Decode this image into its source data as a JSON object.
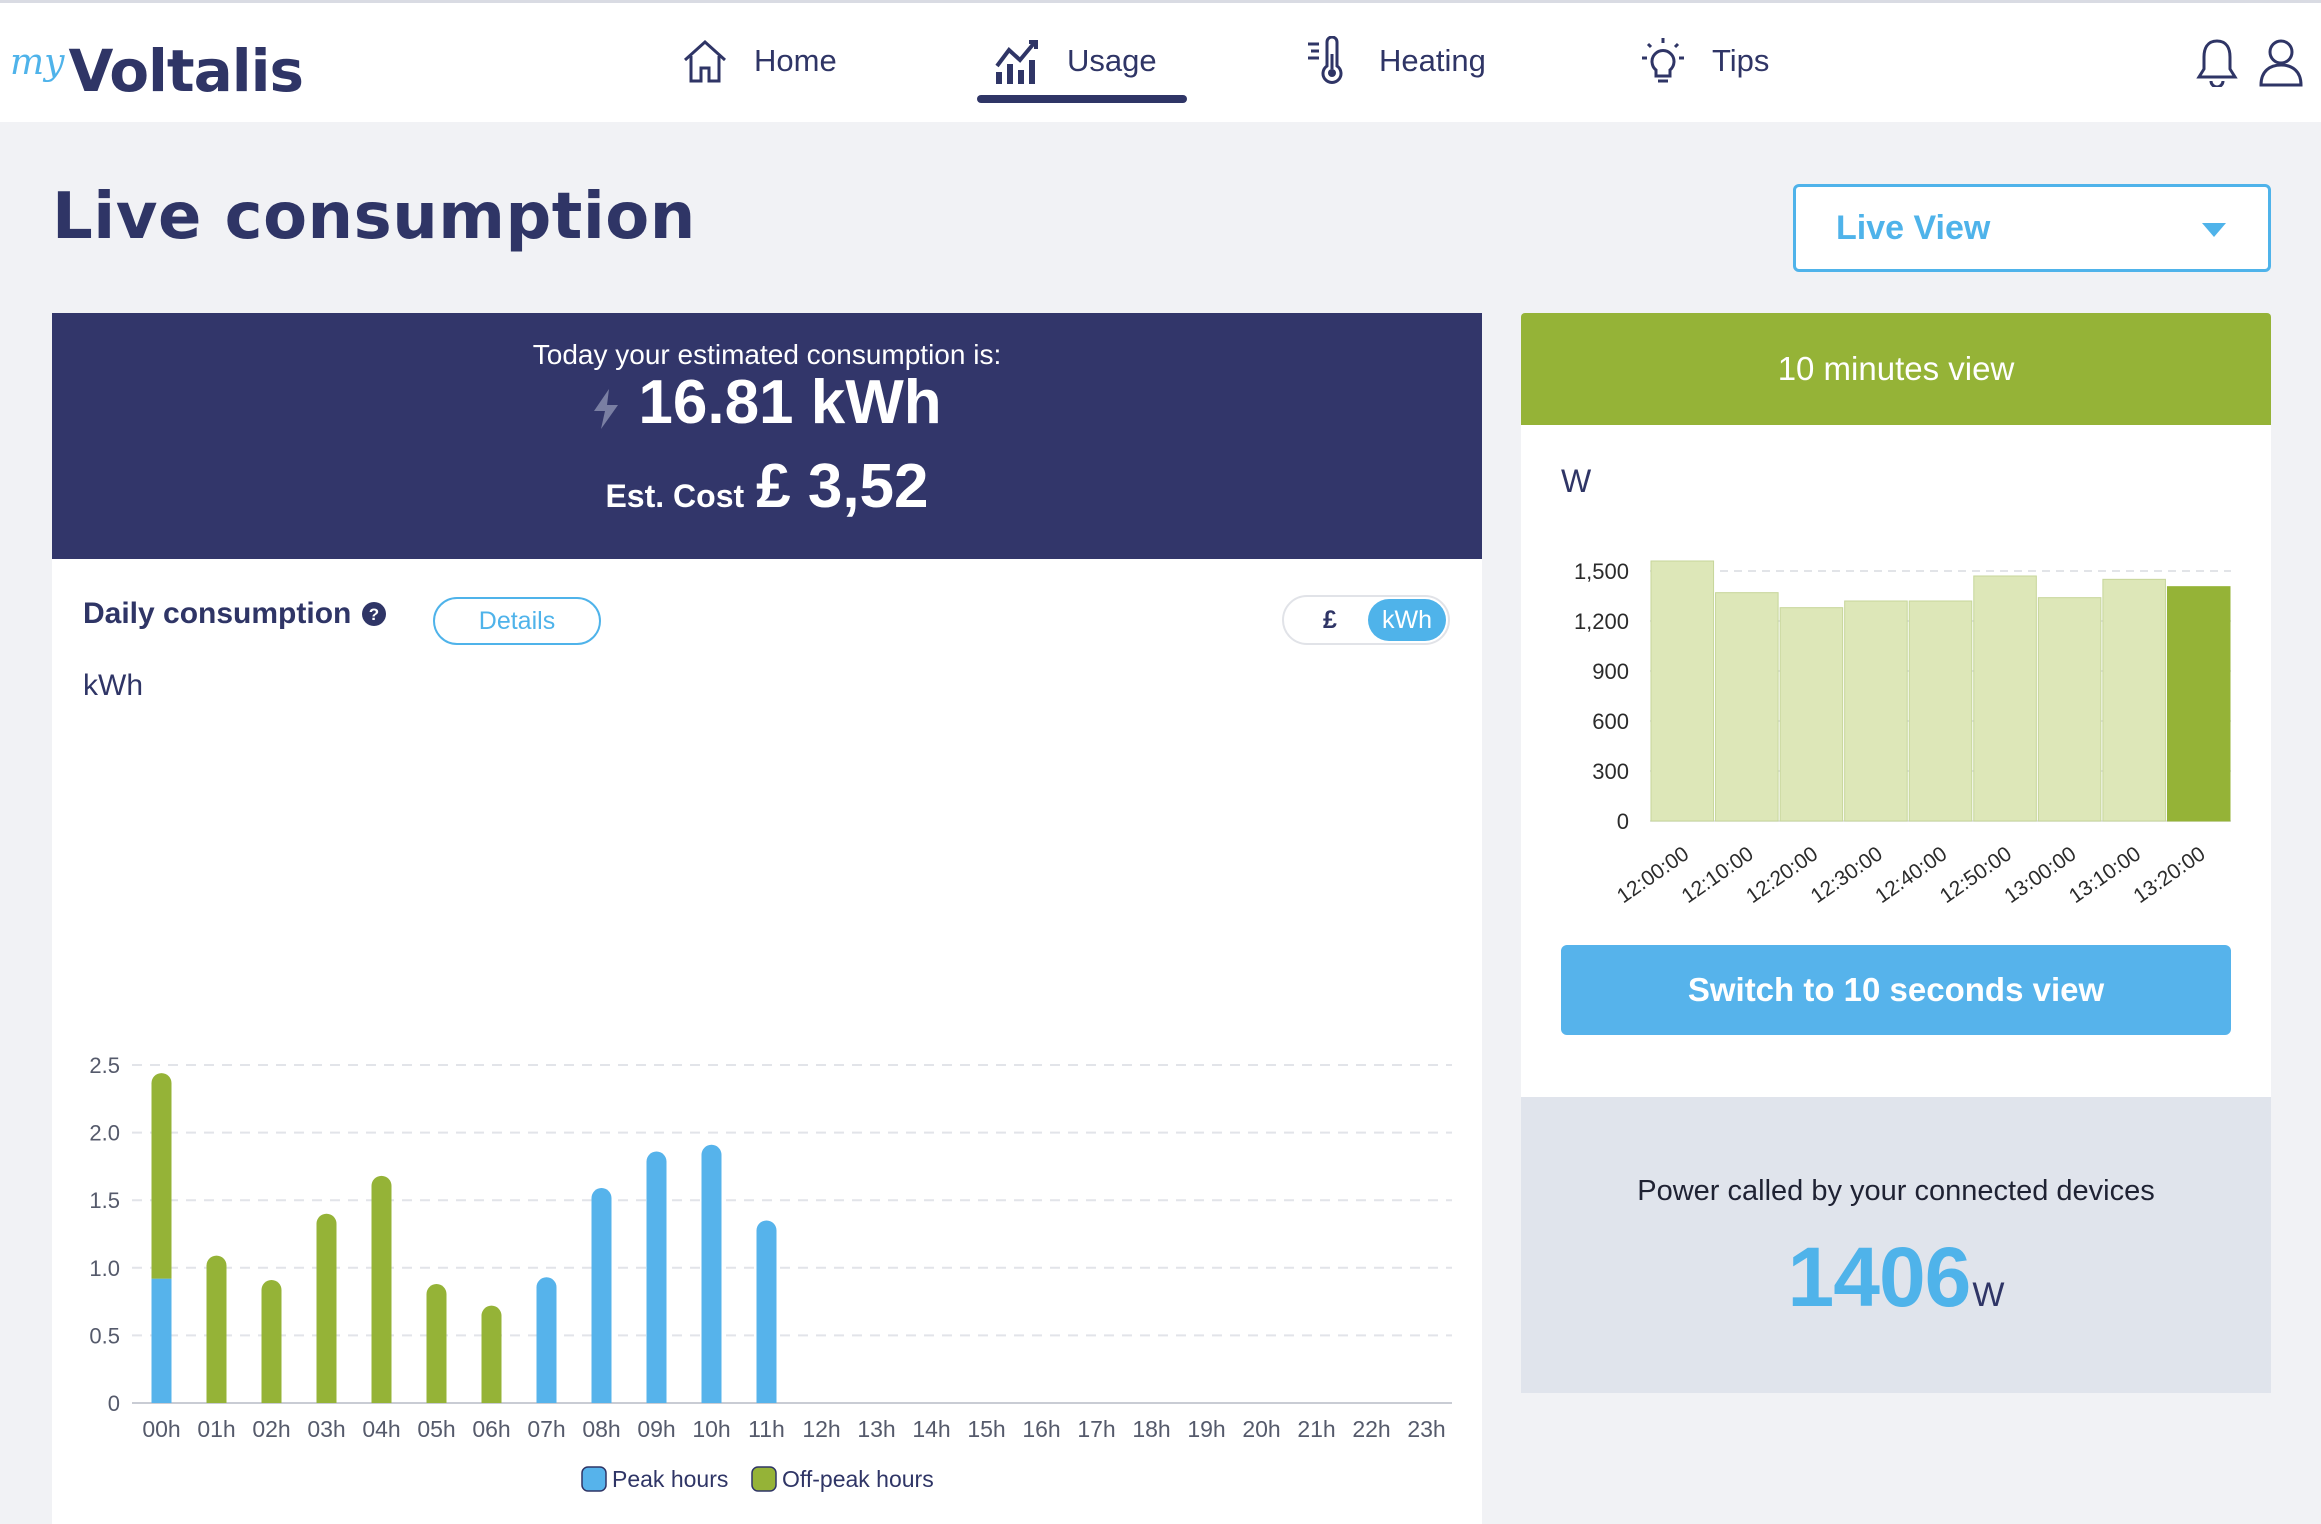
{
  "brand": {
    "prefix": "my",
    "name": "Voltalis"
  },
  "nav": {
    "items": [
      {
        "label": "Home",
        "icon": "home-icon",
        "active": false
      },
      {
        "label": "Usage",
        "icon": "usage-chart-icon",
        "active": true
      },
      {
        "label": "Heating",
        "icon": "thermometer-icon",
        "active": false
      },
      {
        "label": "Tips",
        "icon": "lightbulb-icon",
        "active": false
      }
    ]
  },
  "header": {
    "title": "Live consumption",
    "view_select": "Live View"
  },
  "summary": {
    "intro": "Today your estimated consumption is:",
    "consumption": "16.81 kWh",
    "cost_label": "Est. Cost",
    "cost_value": "£ 3,52"
  },
  "daily": {
    "title": "Daily consumption",
    "details_button": "Details",
    "toggle_gbp": "£",
    "toggle_kwh": "kWh",
    "unit": "kWh"
  },
  "ten_min": {
    "title": "10 minutes view",
    "unit": "W",
    "switch_button": "Switch to 10 seconds view"
  },
  "power": {
    "label": "Power called by your connected devices",
    "value": "1406",
    "unit": "W"
  },
  "colors": {
    "navy": "#32366a",
    "peak": "#56b3eb",
    "offpeak": "#95b337",
    "light_green": "#dde7b8"
  },
  "chart_data": [
    {
      "type": "bar",
      "stacked": true,
      "categories": [
        "00h",
        "01h",
        "02h",
        "03h",
        "04h",
        "05h",
        "06h",
        "07h",
        "08h",
        "09h",
        "10h",
        "11h",
        "12h",
        "13h",
        "14h",
        "15h",
        "16h",
        "17h",
        "18h",
        "19h",
        "20h",
        "21h",
        "22h",
        "23h"
      ],
      "series": [
        {
          "name": "Peak hours",
          "color": "#56b3eb",
          "values": [
            0.92,
            0,
            0,
            0,
            0,
            0,
            0,
            0.93,
            1.59,
            1.86,
            1.91,
            1.35,
            null,
            null,
            null,
            null,
            null,
            null,
            null,
            null,
            null,
            null,
            null,
            null
          ]
        },
        {
          "name": "Off-peak hours",
          "color": "#95b337",
          "values": [
            1.52,
            1.09,
            0.91,
            1.4,
            1.68,
            0.88,
            0.72,
            0,
            0,
            0,
            0,
            0,
            null,
            null,
            null,
            null,
            null,
            null,
            null,
            null,
            null,
            null,
            null,
            null
          ]
        }
      ],
      "yticks": [
        "0",
        "0.5",
        "1.0",
        "1.5",
        "2.0",
        "2.5"
      ],
      "ylim": [
        0,
        2.5
      ],
      "ylabel": "kWh",
      "legend": "bottom",
      "grid": true
    },
    {
      "type": "bar",
      "categories": [
        "12:00:00",
        "12:10:00",
        "12:20:00",
        "12:30:00",
        "12:40:00",
        "12:50:00",
        "13:00:00",
        "13:10:00",
        "13:20:00"
      ],
      "values": [
        1560,
        1370,
        1280,
        1320,
        1320,
        1470,
        1340,
        1450,
        1406
      ],
      "highlight_last": true,
      "yticks": [
        "0",
        "300",
        "600",
        "900",
        "1,200",
        "1,500"
      ],
      "ylim": [
        0,
        1650
      ],
      "ylabel": "W",
      "grid": true
    }
  ]
}
